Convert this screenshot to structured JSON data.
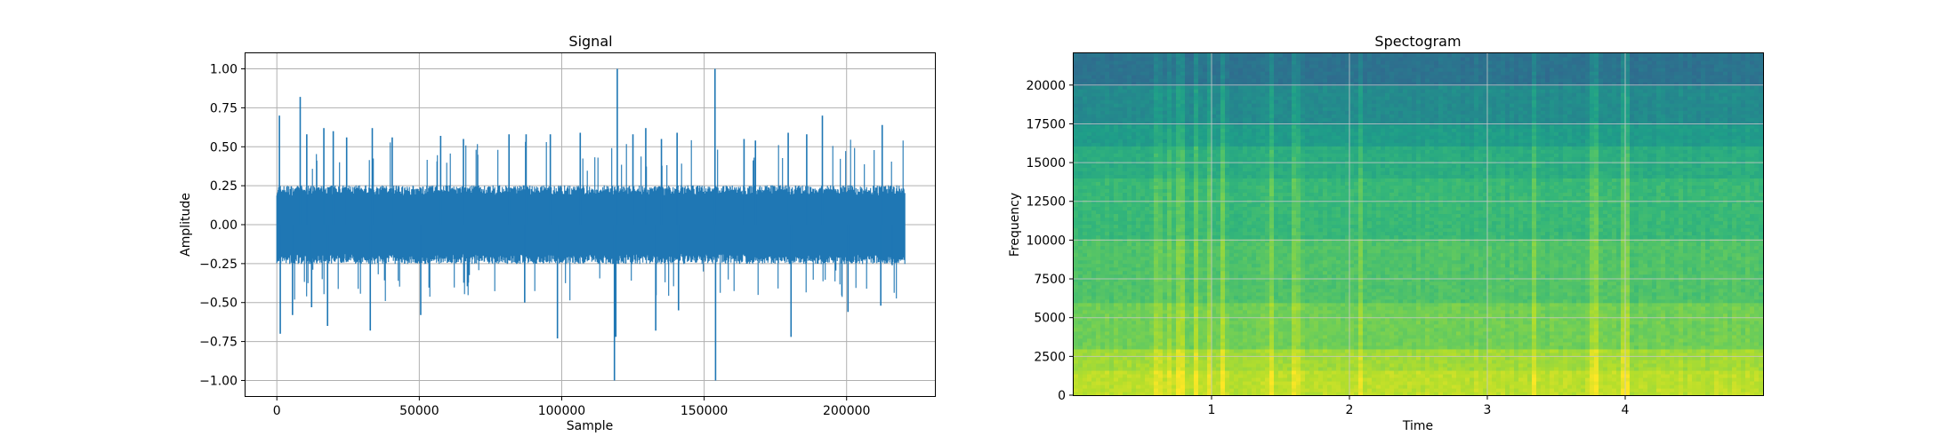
{
  "chart_data": [
    {
      "type": "line",
      "title": "Signal",
      "xlabel": "Sample",
      "ylabel": "Amplitude",
      "xlim": [
        -11000,
        231000
      ],
      "ylim": [
        -1.1,
        1.1
      ],
      "grid": true,
      "color": "#1f77b4",
      "x_ticks": [
        0,
        50000,
        100000,
        150000,
        200000
      ],
      "x_tick_labels": [
        "0",
        "50000",
        "100000",
        "150000",
        "200000"
      ],
      "y_ticks": [
        1.0,
        0.75,
        0.5,
        0.25,
        0.0,
        -0.25,
        -0.5,
        -0.75,
        -1.0
      ],
      "y_tick_labels": [
        "1.00",
        "0.75",
        "0.50",
        "0.25",
        "0.00",
        "−0.25",
        "−0.50",
        "−0.75",
        "−1.00"
      ],
      "num_samples": 220500,
      "noise_band": [
        -0.22,
        0.22
      ],
      "peaks": [
        {
          "x": 900,
          "y": 0.7
        },
        {
          "x": 1200,
          "y": -0.7
        },
        {
          "x": 8200,
          "y": 0.82
        },
        {
          "x": 5500,
          "y": -0.58
        },
        {
          "x": 10500,
          "y": 0.58
        },
        {
          "x": 12200,
          "y": -0.53
        },
        {
          "x": 16500,
          "y": 0.62
        },
        {
          "x": 17800,
          "y": -0.65
        },
        {
          "x": 19800,
          "y": 0.6
        },
        {
          "x": 24500,
          "y": 0.56
        },
        {
          "x": 32800,
          "y": -0.68
        },
        {
          "x": 33500,
          "y": 0.62
        },
        {
          "x": 40500,
          "y": 0.56
        },
        {
          "x": 50500,
          "y": -0.58
        },
        {
          "x": 57500,
          "y": 0.57
        },
        {
          "x": 65500,
          "y": 0.55
        },
        {
          "x": 81500,
          "y": 0.58
        },
        {
          "x": 87500,
          "y": 0.58
        },
        {
          "x": 87000,
          "y": -0.5
        },
        {
          "x": 96000,
          "y": 0.58
        },
        {
          "x": 98500,
          "y": -0.73
        },
        {
          "x": 106500,
          "y": 0.59
        },
        {
          "x": 119500,
          "y": 1.0
        },
        {
          "x": 118500,
          "y": -1.0
        },
        {
          "x": 119000,
          "y": -0.72
        },
        {
          "x": 125000,
          "y": 0.58
        },
        {
          "x": 129500,
          "y": 0.62
        },
        {
          "x": 133000,
          "y": -0.68
        },
        {
          "x": 135000,
          "y": 0.55
        },
        {
          "x": 140500,
          "y": 0.59
        },
        {
          "x": 141000,
          "y": -0.55
        },
        {
          "x": 153800,
          "y": 1.0
        },
        {
          "x": 154000,
          "y": -1.0
        },
        {
          "x": 164000,
          "y": 0.55
        },
        {
          "x": 168000,
          "y": 0.54
        },
        {
          "x": 179500,
          "y": 0.59
        },
        {
          "x": 180500,
          "y": -0.72
        },
        {
          "x": 186000,
          "y": 0.58
        },
        {
          "x": 191500,
          "y": 0.7
        },
        {
          "x": 200500,
          "y": -0.56
        },
        {
          "x": 212500,
          "y": 0.64
        },
        {
          "x": 212000,
          "y": -0.52
        },
        {
          "x": 216000,
          "y": -0.26
        }
      ]
    },
    {
      "type": "heatmap",
      "title": "Spectogram",
      "xlabel": "Time",
      "ylabel": "Frequency",
      "xlim": [
        0,
        5.0
      ],
      "ylim": [
        0,
        22050
      ],
      "grid": true,
      "colormap": "viridis",
      "x_ticks": [
        1,
        2,
        3,
        4
      ],
      "x_tick_labels": [
        "1",
        "2",
        "3",
        "4"
      ],
      "y_ticks": [
        0,
        2500,
        5000,
        7500,
        10000,
        12500,
        15000,
        17500,
        20000
      ],
      "y_tick_labels": [
        "0",
        "2500",
        "5000",
        "7500",
        "10000",
        "12500",
        "15000",
        "17500",
        "20000"
      ],
      "frequency_bands": [
        {
          "from": 0,
          "to": 1500,
          "level": 0.9
        },
        {
          "from": 1500,
          "to": 3000,
          "level": 0.86
        },
        {
          "from": 3000,
          "to": 6000,
          "level": 0.78
        },
        {
          "from": 6000,
          "to": 10000,
          "level": 0.72
        },
        {
          "from": 10000,
          "to": 14000,
          "level": 0.67
        },
        {
          "from": 14000,
          "to": 16000,
          "level": 0.62
        },
        {
          "from": 16000,
          "to": 17500,
          "level": 0.55
        },
        {
          "from": 17500,
          "to": 20000,
          "level": 0.48
        },
        {
          "from": 20000,
          "to": 22050,
          "level": 0.38
        }
      ]
    }
  ]
}
